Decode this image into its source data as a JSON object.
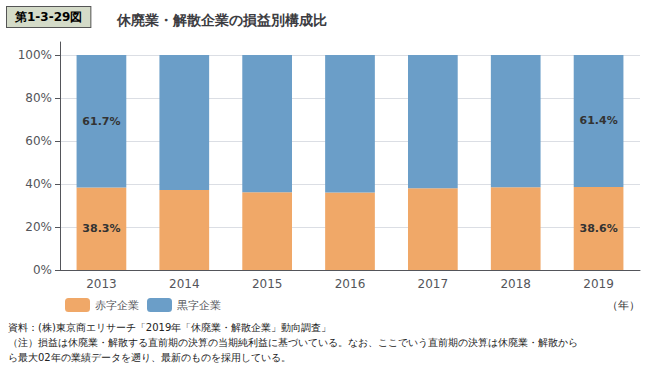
{
  "chart_data": {
    "type": "bar",
    "stacked": true,
    "figure_label": "第1-3-29図",
    "title": "休廃業・解散企業の損益別構成比",
    "x_label": "（年）",
    "categories": [
      "2013",
      "2014",
      "2015",
      "2016",
      "2017",
      "2018",
      "2019"
    ],
    "series": [
      {
        "name": "赤字企業",
        "color": "#f0a868",
        "values": [
          38.3,
          37.2,
          36.2,
          36.0,
          38.0,
          38.5,
          38.6
        ]
      },
      {
        "name": "黒字企業",
        "color": "#6b9ec8",
        "values": [
          61.7,
          62.8,
          63.8,
          64.0,
          62.0,
          61.5,
          61.4
        ]
      }
    ],
    "annotations": [
      {
        "text": "38.3%",
        "category": "2013",
        "series": "赤字企業"
      },
      {
        "text": "61.7%",
        "category": "2013",
        "series": "黒字企業"
      },
      {
        "text": "38.6%",
        "category": "2019",
        "series": "赤字企業"
      },
      {
        "text": "61.4%",
        "category": "2019",
        "series": "黒字企業"
      }
    ],
    "ylim": [
      0,
      106
    ],
    "yticks": [
      {
        "value": 0,
        "label": "0%"
      },
      {
        "value": 20,
        "label": "20%"
      },
      {
        "value": 40,
        "label": "40%"
      },
      {
        "value": 60,
        "label": "60%"
      },
      {
        "value": 80,
        "label": "80%"
      },
      {
        "value": 100,
        "label": "100%"
      }
    ],
    "grid": true,
    "legend": "bottom",
    "notes": [
      "資料：(株)東京商エリサーチ「2019年「休廃業・解散企業」動向調査」",
      "（注）損益は休廃業・解散する直前期の決算の当期純利益に基づいている。なお、ここでいう直前期の決算は休廃業・解散から",
      "ら最大02年の業績データを遡り、最新のものを採用している。"
    ]
  }
}
